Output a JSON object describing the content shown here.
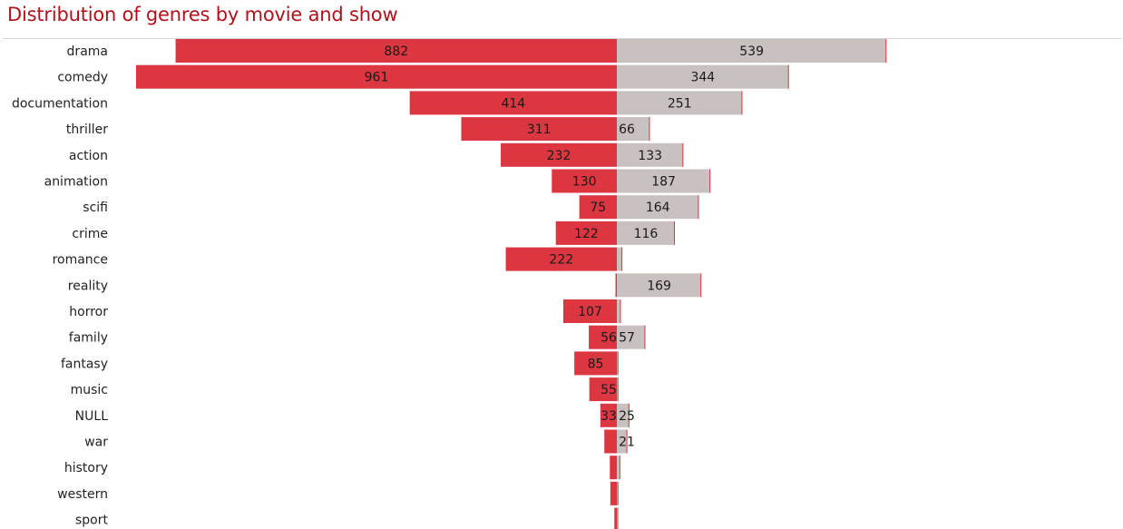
{
  "chart_data": {
    "type": "bar",
    "title": "Distribution of genres by movie and show",
    "orientation": "horizontal-diverging",
    "categories": [
      "drama",
      "comedy",
      "documentation",
      "thriller",
      "action",
      "animation",
      "scifi",
      "crime",
      "romance",
      "reality",
      "horror",
      "family",
      "fantasy",
      "music",
      "NULL",
      "war",
      "history",
      "western",
      "sport"
    ],
    "series": [
      {
        "color": "#dc3641",
        "direction": "left",
        "values": [
          882,
          961,
          414,
          311,
          232,
          130,
          75,
          122,
          222,
          2,
          107,
          56,
          85,
          55,
          33,
          25,
          14,
          13,
          5
        ],
        "labels": [
          "882",
          "961",
          "414",
          "311",
          "232",
          "130",
          "75",
          "122",
          "222",
          "",
          "107",
          "56",
          "85",
          "55",
          "33",
          "",
          "",
          "",
          ""
        ]
      },
      {
        "color": "#c9c1bf",
        "direction": "right",
        "values": [
          539,
          344,
          251,
          66,
          133,
          187,
          164,
          116,
          11,
          169,
          8,
          57,
          3,
          3,
          25,
          21,
          7,
          3,
          1
        ],
        "labels": [
          "539",
          "344",
          "251",
          "66",
          "133",
          "187",
          "164",
          "116",
          "",
          "169",
          "",
          "57",
          "",
          "",
          "25",
          "21",
          "",
          "",
          ""
        ]
      }
    ],
    "bar_edge_color": "#dc3641",
    "xlim": [
      -961,
      539
    ],
    "grid": false,
    "legend": "none",
    "axes_visible": false
  }
}
